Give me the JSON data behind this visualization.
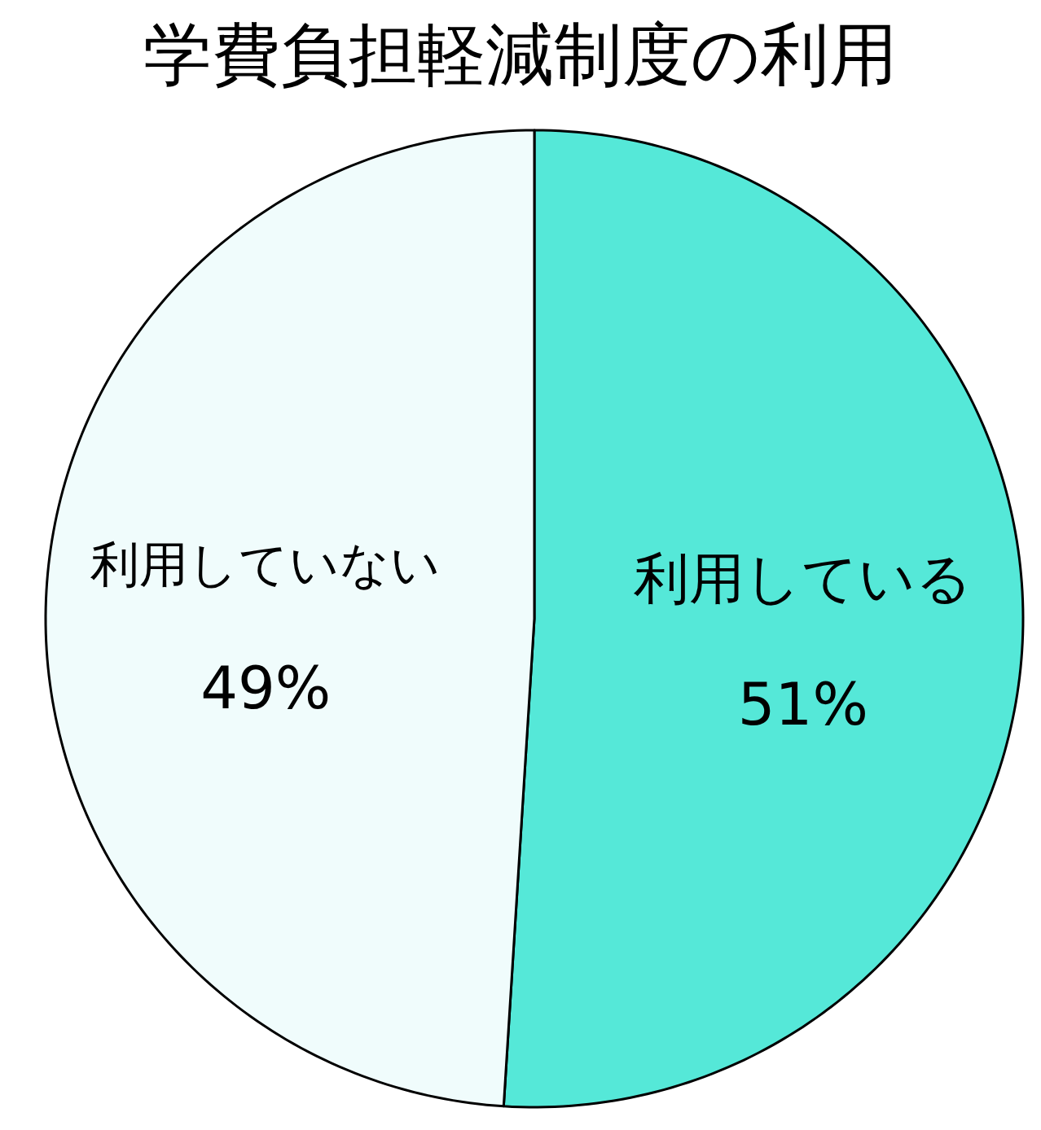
{
  "chart_data": {
    "type": "pie",
    "title": "学費負担軽減制度の利用",
    "categories": [
      "利用している",
      "利用していない"
    ],
    "values": [
      51,
      49
    ],
    "colors": [
      "#55e8d8",
      "#f0fcfc"
    ],
    "value_labels": [
      "51%",
      "49%"
    ]
  }
}
